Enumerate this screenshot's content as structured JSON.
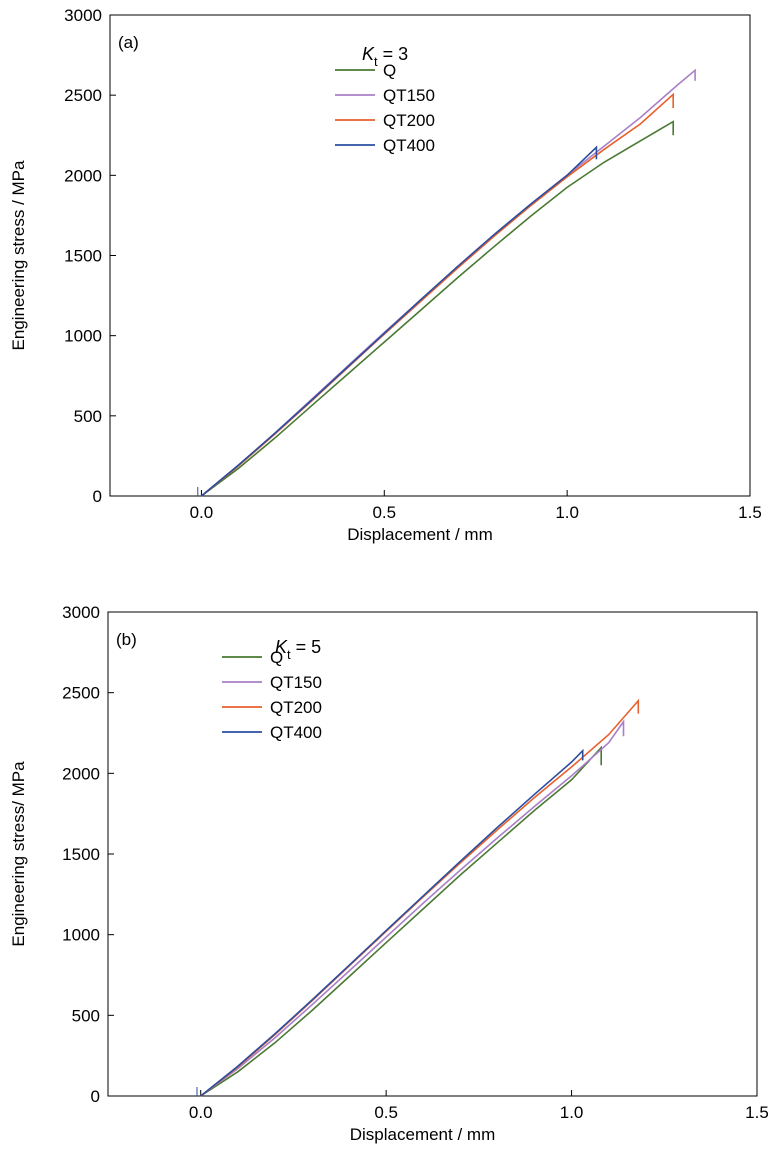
{
  "chart_data": [
    {
      "type": "line",
      "panel_label": "(a)",
      "annotation": {
        "symbol": "K",
        "subscript": "t",
        "rest": " = 3"
      },
      "xlabel": "Displacement / mm",
      "ylabel": "Engineering stress / MPa",
      "xlim": [
        -0.25,
        1.5
      ],
      "ylim": [
        0,
        3000
      ],
      "xticks": [
        "0.0",
        "0.5",
        "1.0",
        "1.5"
      ],
      "yticks": [
        "0",
        "500",
        "1000",
        "1500",
        "2000",
        "2500",
        "3000"
      ],
      "legend": "top-center",
      "series": [
        {
          "name": "Q",
          "color": "#4a7a32",
          "points": [
            [
              0,
              0
            ],
            [
              0.1,
              170
            ],
            [
              0.2,
              360
            ],
            [
              0.3,
              560
            ],
            [
              0.4,
              760
            ],
            [
              0.5,
              960
            ],
            [
              0.6,
              1160
            ],
            [
              0.7,
              1360
            ],
            [
              0.8,
              1555
            ],
            [
              0.9,
              1745
            ],
            [
              1.0,
              1925
            ],
            [
              1.1,
              2080
            ],
            [
              1.2,
              2215
            ],
            [
              1.29,
              2335
            ],
            [
              1.29,
              2250
            ]
          ]
        },
        {
          "name": "QT150",
          "color": "#a97fc7",
          "points": [
            [
              0,
              0
            ],
            [
              0.1,
              190
            ],
            [
              0.2,
              390
            ],
            [
              0.3,
              600
            ],
            [
              0.4,
              810
            ],
            [
              0.5,
              1020
            ],
            [
              0.6,
              1225
            ],
            [
              0.7,
              1430
            ],
            [
              0.8,
              1630
            ],
            [
              0.9,
              1820
            ],
            [
              1.0,
              2000
            ],
            [
              1.1,
              2180
            ],
            [
              1.2,
              2360
            ],
            [
              1.3,
              2560
            ],
            [
              1.35,
              2655
            ],
            [
              1.35,
              2590
            ]
          ]
        },
        {
          "name": "QT200",
          "color": "#e8602c",
          "points": [
            [
              0,
              0
            ],
            [
              0.1,
              185
            ],
            [
              0.2,
              385
            ],
            [
              0.3,
              590
            ],
            [
              0.4,
              800
            ],
            [
              0.5,
              1010
            ],
            [
              0.6,
              1215
            ],
            [
              0.7,
              1420
            ],
            [
              0.8,
              1620
            ],
            [
              0.9,
              1810
            ],
            [
              1.0,
              1990
            ],
            [
              1.1,
              2160
            ],
            [
              1.2,
              2320
            ],
            [
              1.29,
              2505
            ],
            [
              1.29,
              2420
            ]
          ]
        },
        {
          "name": "QT400",
          "color": "#2a4ea0",
          "points": [
            [
              0,
              0
            ],
            [
              0.1,
              190
            ],
            [
              0.2,
              390
            ],
            [
              0.3,
              595
            ],
            [
              0.4,
              805
            ],
            [
              0.5,
              1015
            ],
            [
              0.6,
              1225
            ],
            [
              0.7,
              1430
            ],
            [
              0.8,
              1630
            ],
            [
              0.9,
              1820
            ],
            [
              1.0,
              2000
            ],
            [
              1.08,
              2175
            ],
            [
              1.08,
              2100
            ]
          ]
        }
      ]
    },
    {
      "type": "line",
      "panel_label": "(b)",
      "annotation": {
        "symbol": "K",
        "subscript": "t",
        "rest": " = 5"
      },
      "xlabel": "Displacement / mm",
      "ylabel": "Engineering stress/ MPa",
      "xlim": [
        -0.25,
        1.5
      ],
      "ylim": [
        0,
        3000
      ],
      "xticks": [
        "0.0",
        "0.5",
        "1.0",
        "1.5"
      ],
      "yticks": [
        "0",
        "500",
        "1000",
        "1500",
        "2000",
        "2500",
        "3000"
      ],
      "legend": "top-center",
      "series": [
        {
          "name": "Q",
          "color": "#4a7a32",
          "points": [
            [
              0,
              0
            ],
            [
              0.1,
              150
            ],
            [
              0.2,
              330
            ],
            [
              0.3,
              530
            ],
            [
              0.4,
              740
            ],
            [
              0.5,
              950
            ],
            [
              0.6,
              1160
            ],
            [
              0.7,
              1370
            ],
            [
              0.8,
              1570
            ],
            [
              0.9,
              1770
            ],
            [
              1.0,
              1960
            ],
            [
              1.08,
              2160
            ],
            [
              1.08,
              2050
            ]
          ]
        },
        {
          "name": "QT150",
          "color": "#a97fc7",
          "points": [
            [
              0,
              0
            ],
            [
              0.1,
              170
            ],
            [
              0.2,
              360
            ],
            [
              0.3,
              565
            ],
            [
              0.4,
              775
            ],
            [
              0.5,
              985
            ],
            [
              0.6,
              1195
            ],
            [
              0.7,
              1400
            ],
            [
              0.8,
              1600
            ],
            [
              0.9,
              1795
            ],
            [
              1.0,
              1985
            ],
            [
              1.1,
              2190
            ],
            [
              1.14,
              2320
            ],
            [
              1.14,
              2230
            ]
          ]
        },
        {
          "name": "QT200",
          "color": "#e8602c",
          "points": [
            [
              0,
              0
            ],
            [
              0.1,
              180
            ],
            [
              0.2,
              380
            ],
            [
              0.3,
              590
            ],
            [
              0.4,
              805
            ],
            [
              0.5,
              1020
            ],
            [
              0.6,
              1235
            ],
            [
              0.7,
              1445
            ],
            [
              0.8,
              1650
            ],
            [
              0.9,
              1850
            ],
            [
              1.0,
              2040
            ],
            [
              1.1,
              2240
            ],
            [
              1.18,
              2450
            ],
            [
              1.18,
              2370
            ]
          ]
        },
        {
          "name": "QT400",
          "color": "#2a4ea0",
          "points": [
            [
              0,
              0
            ],
            [
              0.1,
              185
            ],
            [
              0.2,
              385
            ],
            [
              0.3,
              595
            ],
            [
              0.4,
              810
            ],
            [
              0.5,
              1025
            ],
            [
              0.6,
              1240
            ],
            [
              0.7,
              1455
            ],
            [
              0.8,
              1665
            ],
            [
              0.9,
              1870
            ],
            [
              1.0,
              2070
            ],
            [
              1.03,
              2140
            ],
            [
              1.03,
              2080
            ]
          ]
        }
      ]
    }
  ]
}
